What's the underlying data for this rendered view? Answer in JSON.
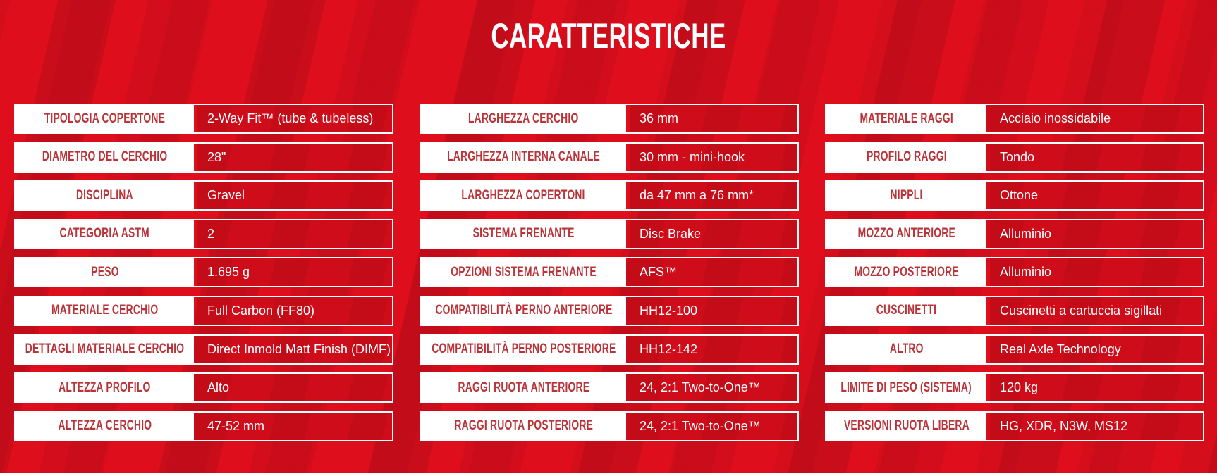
{
  "title": "CARATTERISTICHE",
  "theme": {
    "background_red": "#de0e1c",
    "pattern_dark_red": "#c40b16",
    "value_cell_red": "#cf0d1a",
    "label_text_red": "#b93339",
    "text_white": "#ffffff"
  },
  "spec_columns": [
    {
      "rows": [
        {
          "label": "TIPOLOGIA COPERTONE",
          "value": "2-Way Fit™ (tube & tubeless)"
        },
        {
          "label": "DIAMETRO DEL CERCHIO",
          "value": "28\""
        },
        {
          "label": "DISCIPLINA",
          "value": "Gravel"
        },
        {
          "label": "CATEGORIA ASTM",
          "value": "2"
        },
        {
          "label": "PESO",
          "value": "1.695 g"
        },
        {
          "label": "MATERIALE CERCHIO",
          "value": "Full Carbon (FF80)"
        },
        {
          "label": "DETTAGLI MATERIALE CERCHIO",
          "value": "Direct Inmold Matt Finish (DIMF)"
        },
        {
          "label": "ALTEZZA PROFILO",
          "value": "Alto"
        },
        {
          "label": "ALTEZZA CERCHIO",
          "value": "47-52 mm"
        }
      ]
    },
    {
      "rows": [
        {
          "label": "LARGHEZZA CERCHIO",
          "value": "36 mm"
        },
        {
          "label": "LARGHEZZA INTERNA CANALE",
          "value": "30 mm - mini-hook"
        },
        {
          "label": "LARGHEZZA COPERTONI",
          "value": "da 47 mm a 76 mm*"
        },
        {
          "label": "SISTEMA FRENANTE",
          "value": "Disc Brake"
        },
        {
          "label": "OPZIONI SISTEMA FRENANTE",
          "value": "AFS™"
        },
        {
          "label": "COMPATIBILITÀ PERNO ANTERIORE",
          "value": "HH12-100"
        },
        {
          "label": "COMPATIBILITÀ PERNO POSTERIORE",
          "value": "HH12-142"
        },
        {
          "label": "RAGGI RUOTA ANTERIORE",
          "value": "24, 2:1 Two-to-One™"
        },
        {
          "label": "RAGGI RUOTA POSTERIORE",
          "value": "24, 2:1 Two-to-One™"
        }
      ]
    },
    {
      "rows": [
        {
          "label": "MATERIALE RAGGI",
          "value": "Acciaio inossidabile"
        },
        {
          "label": "PROFILO RAGGI",
          "value": "Tondo"
        },
        {
          "label": "NIPPLI",
          "value": "Ottone"
        },
        {
          "label": "MOZZO ANTERIORE",
          "value": "Alluminio"
        },
        {
          "label": "MOZZO POSTERIORE",
          "value": "Alluminio"
        },
        {
          "label": "CUSCINETTI",
          "value": "Cuscinetti a cartuccia sigillati"
        },
        {
          "label": "ALTRO",
          "value": "Real Axle Technology"
        },
        {
          "label": "LIMITE DI PESO (SISTEMA)",
          "value": "120 kg"
        },
        {
          "label": "VERSIONI RUOTA LIBERA",
          "value": "HG, XDR, N3W, MS12"
        }
      ]
    }
  ]
}
